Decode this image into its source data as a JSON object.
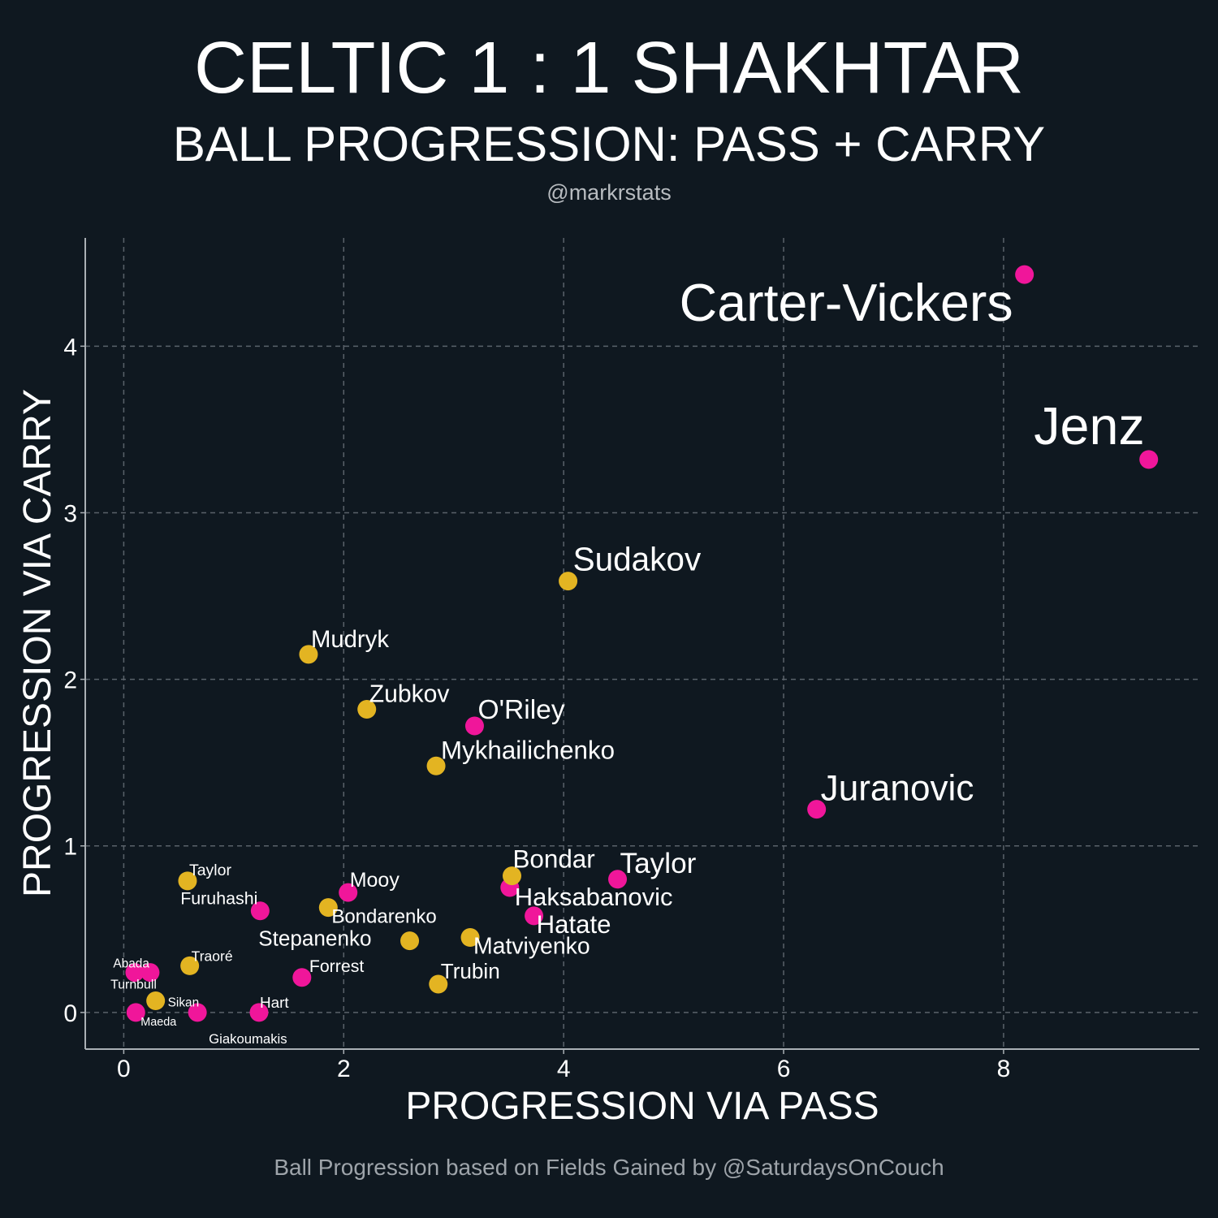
{
  "chart_data": {
    "type": "scatter",
    "title": "CELTIC 1 : 1 SHAKHTAR",
    "subtitle": "BALL PROGRESSION: PASS + CARRY",
    "credit": "@markrstats",
    "footnote": "Ball Progression based on Fields Gained by @SaturdaysOnCouch",
    "xlabel": "PROGRESSION VIA PASS",
    "ylabel": "PROGRESSION VIA CARRY",
    "xlim": [
      -0.35,
      9.78
    ],
    "ylim": [
      -0.22,
      4.65
    ],
    "xticks": [
      0,
      2,
      4,
      6,
      8
    ],
    "yticks": [
      0,
      1,
      2,
      3,
      4
    ],
    "grid": true,
    "colors": {
      "pink": "#f0169a",
      "yellow": "#e3b422",
      "background": "#0f1820",
      "grid": "#5a626a"
    },
    "points": [
      {
        "label": "Carter-Vickers",
        "x": 8.19,
        "y": 4.43,
        "color": "pink"
      },
      {
        "label": "Jenz",
        "x": 9.32,
        "y": 3.32,
        "color": "pink"
      },
      {
        "label": "Sudakov",
        "x": 4.04,
        "y": 2.59,
        "color": "yellow"
      },
      {
        "label": "Mudryk",
        "x": 1.68,
        "y": 2.15,
        "color": "yellow"
      },
      {
        "label": "Zubkov",
        "x": 2.21,
        "y": 1.82,
        "color": "yellow"
      },
      {
        "label": "O'Riley",
        "x": 3.19,
        "y": 1.72,
        "color": "pink"
      },
      {
        "label": "Mykhailichenko",
        "x": 2.84,
        "y": 1.48,
        "color": "yellow"
      },
      {
        "label": "Juranovic",
        "x": 6.3,
        "y": 1.22,
        "color": "pink"
      },
      {
        "label": "Taylor",
        "x": 0.58,
        "y": 0.79,
        "color": "yellow"
      },
      {
        "label": "Furuhashi",
        "x": 1.24,
        "y": 0.61,
        "color": "pink"
      },
      {
        "label": "Mooy",
        "x": 2.04,
        "y": 0.72,
        "color": "pink"
      },
      {
        "label": "Bondarenko",
        "x": 1.86,
        "y": 0.63,
        "color": "yellow"
      },
      {
        "label": "Stepanenko",
        "x": 2.6,
        "y": 0.43,
        "color": "yellow"
      },
      {
        "label": "Abada",
        "x": 0.1,
        "y": 0.24,
        "color": "pink"
      },
      {
        "label": "Turnbull",
        "x": 0.24,
        "y": 0.24,
        "color": "pink"
      },
      {
        "label": "Traoré",
        "x": 0.6,
        "y": 0.28,
        "color": "yellow"
      },
      {
        "label": "Forrest",
        "x": 1.62,
        "y": 0.21,
        "color": "pink"
      },
      {
        "label": "Sikan",
        "x": 0.29,
        "y": 0.07,
        "color": "yellow"
      },
      {
        "label": "Maeda",
        "x": 0.11,
        "y": 0.0,
        "color": "pink"
      },
      {
        "label": "Giakoumakis",
        "x": 0.67,
        "y": 0.0,
        "color": "pink"
      },
      {
        "label": "Hart",
        "x": 1.23,
        "y": 0.0,
        "color": "pink"
      },
      {
        "label": "Haksabanovic",
        "x": 3.51,
        "y": 0.75,
        "color": "pink"
      },
      {
        "label": "Bondar",
        "x": 3.53,
        "y": 0.82,
        "color": "yellow"
      },
      {
        "label": "Taylor",
        "x": 4.49,
        "y": 0.8,
        "color": "pink"
      },
      {
        "label": "Hatate",
        "x": 3.73,
        "y": 0.58,
        "color": "pink"
      },
      {
        "label": "Matviyenko",
        "x": 3.15,
        "y": 0.45,
        "color": "yellow"
      },
      {
        "label": "Trubin",
        "x": 2.86,
        "y": 0.17,
        "color": "yellow"
      }
    ]
  }
}
